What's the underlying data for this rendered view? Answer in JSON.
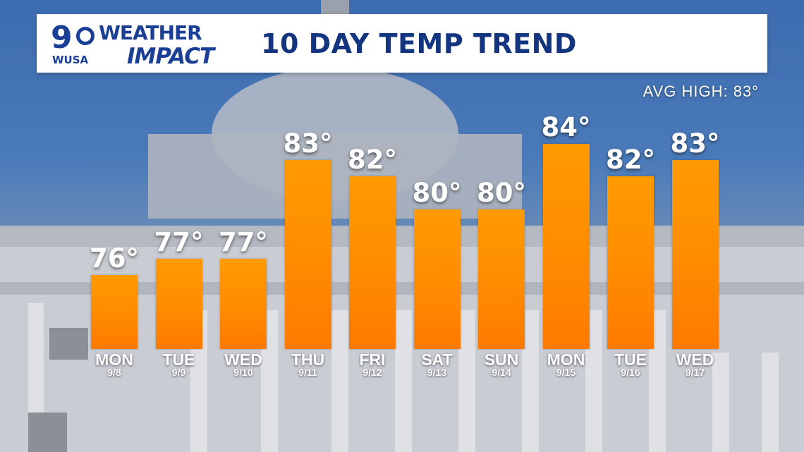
{
  "header": {
    "logo_number": "9",
    "logo_station": "WUSA",
    "logo_line1": "WEATHER",
    "logo_line2": "IMPACT",
    "title": "10 DAY TEMP TREND"
  },
  "avg_high_label": "AVG HIGH: 83°",
  "colors": {
    "bar": "#ff8d00",
    "header_text": "#13357f",
    "logo": "#1b3f95"
  },
  "chart_data": {
    "type": "bar",
    "title": "10 DAY TEMP TREND",
    "xlabel": "",
    "ylabel": "",
    "categories": [
      "MON 9/8",
      "TUE 9/9",
      "WED 9/10",
      "THU 9/11",
      "FRI 9/12",
      "SAT 9/13",
      "SUN 9/14",
      "MON 9/15",
      "TUE 9/16",
      "WED 9/17"
    ],
    "days": [
      "MON",
      "TUE",
      "WED",
      "THU",
      "FRI",
      "SAT",
      "SUN",
      "MON",
      "TUE",
      "WED"
    ],
    "dates": [
      "9/8",
      "9/9",
      "9/10",
      "9/11",
      "9/12",
      "9/13",
      "9/14",
      "9/15",
      "9/16",
      "9/17"
    ],
    "values": [
      76,
      77,
      77,
      83,
      82,
      80,
      80,
      84,
      82,
      83
    ],
    "value_labels": [
      "76°",
      "77°",
      "77°",
      "83°",
      "82°",
      "80°",
      "80°",
      "84°",
      "82°",
      "83°"
    ],
    "avg_high": 83,
    "grid": false,
    "legend": "none"
  }
}
